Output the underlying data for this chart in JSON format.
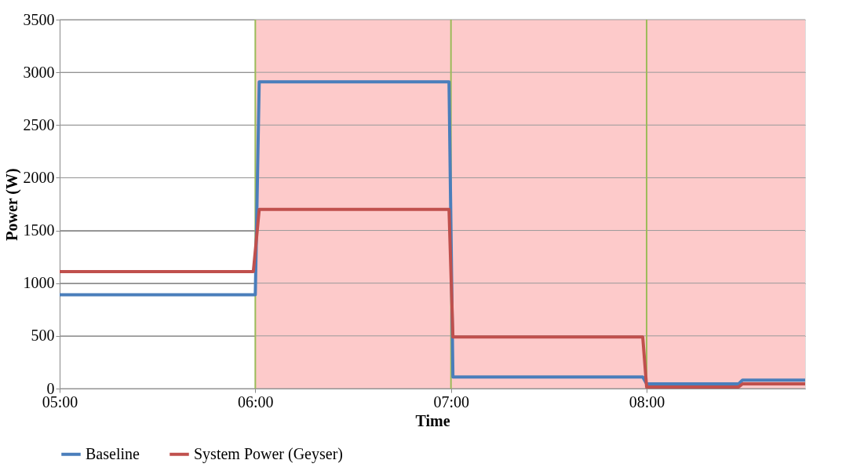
{
  "chart_data": {
    "type": "line",
    "xlabel": "Time",
    "ylabel": "Power (W)",
    "xlim": [
      5,
      8.81
    ],
    "ylim": [
      0,
      3500
    ],
    "xticks": [
      {
        "value": 5,
        "label": "05:00"
      },
      {
        "value": 6,
        "label": "06:00"
      },
      {
        "value": 7,
        "label": "07:00"
      },
      {
        "value": 8,
        "label": "08:00"
      }
    ],
    "yticks": [
      0,
      500,
      1000,
      1500,
      2000,
      2500,
      3000,
      3500
    ],
    "grid": "y",
    "legend": "bottom",
    "marker": "none",
    "line_style": "solid",
    "bands": [
      {
        "axis": "x",
        "from": 6,
        "to": 8.81,
        "color": "#fdcaca"
      }
    ],
    "ref_lines": [
      {
        "axis": "x",
        "value": 6,
        "color": "#9bbb59"
      },
      {
        "axis": "x",
        "value": 7,
        "color": "#9bbb59"
      },
      {
        "axis": "x",
        "value": 8,
        "color": "#9bbb59"
      }
    ],
    "series": [
      {
        "name": "Baseline",
        "color": "#4a7ebb",
        "x": [
          5,
          6,
          6.02,
          6.99,
          7.01,
          7.98,
          8.0,
          8.47,
          8.49,
          8.81
        ],
        "values": [
          890,
          890,
          2910,
          2910,
          110,
          110,
          45,
          45,
          80,
          80
        ]
      },
      {
        "name": "System Power (Geyser)",
        "color": "#c0504d",
        "x": [
          5,
          5.99,
          6.02,
          6.99,
          7.01,
          7.98,
          8.0,
          8.47,
          8.49,
          8.81
        ],
        "values": [
          1110,
          1110,
          1700,
          1700,
          490,
          490,
          15,
          15,
          45,
          45
        ]
      }
    ]
  }
}
